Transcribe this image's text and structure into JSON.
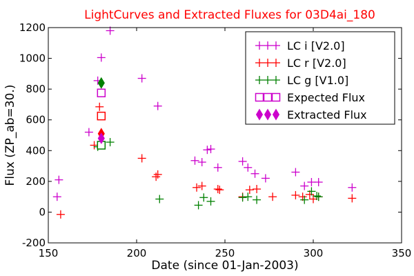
{
  "chart_data": {
    "type": "scatter",
    "title": "LightCurves and Extracted Fluxes for 03D4ai_180",
    "title_color": "#ff0000",
    "xlabel": "Date (since 01-Jan-2003)",
    "ylabel": "Flux (ZP_ab=30.)",
    "xlim": [
      150,
      350
    ],
    "ylim": [
      -200,
      1200
    ],
    "xticks": [
      150,
      200,
      250,
      300,
      350
    ],
    "yticks": [
      -200,
      0,
      200,
      400,
      600,
      800,
      1000,
      1200
    ],
    "grid": false,
    "legend_position": "top-right",
    "series": [
      {
        "name": "LC i [V2.0]",
        "marker": "plus",
        "color": "#cc00cc",
        "points": [
          [
            155,
            100
          ],
          [
            156,
            210
          ],
          [
            173,
            520
          ],
          [
            178,
            855
          ],
          [
            180,
            1005
          ],
          [
            185,
            1180
          ],
          [
            203,
            870
          ],
          [
            212,
            690
          ],
          [
            233,
            335
          ],
          [
            237,
            325
          ],
          [
            240,
            405
          ],
          [
            242,
            410
          ],
          [
            246,
            290
          ],
          [
            260,
            330
          ],
          [
            263,
            290
          ],
          [
            267,
            250
          ],
          [
            273,
            220
          ],
          [
            290,
            260
          ],
          [
            295,
            170
          ],
          [
            299,
            195
          ],
          [
            303,
            195
          ],
          [
            322,
            160
          ]
        ]
      },
      {
        "name": "LC r [V2.0]",
        "marker": "plus",
        "color": "#ff0000",
        "points": [
          [
            157,
            -15
          ],
          [
            176,
            435
          ],
          [
            179,
            685
          ],
          [
            203,
            350
          ],
          [
            211,
            230
          ],
          [
            212,
            245
          ],
          [
            234,
            160
          ],
          [
            237,
            170
          ],
          [
            246,
            150
          ],
          [
            247,
            145
          ],
          [
            260,
            100
          ],
          [
            264,
            145
          ],
          [
            268,
            150
          ],
          [
            277,
            100
          ],
          [
            290,
            110
          ],
          [
            294,
            100
          ],
          [
            298,
            115
          ],
          [
            300,
            85
          ],
          [
            303,
            100
          ],
          [
            322,
            90
          ]
        ]
      },
      {
        "name": "LC g [V1.0]",
        "marker": "plus",
        "color": "#008000",
        "points": [
          [
            178,
            425
          ],
          [
            185,
            455
          ],
          [
            213,
            85
          ],
          [
            235,
            45
          ],
          [
            238,
            95
          ],
          [
            242,
            70
          ],
          [
            260,
            95
          ],
          [
            263,
            100
          ],
          [
            268,
            80
          ],
          [
            295,
            80
          ],
          [
            299,
            135
          ],
          [
            302,
            105
          ],
          [
            303,
            100
          ]
        ]
      },
      {
        "name": "Expected Flux",
        "marker": "square",
        "color": "#cc00cc",
        "points": [
          [
            180,
            775
          ],
          [
            180,
            625
          ],
          [
            180,
            435
          ]
        ],
        "point_colors": [
          "#cc00cc",
          "#ff0000",
          "#008000"
        ]
      },
      {
        "name": "Extracted Flux",
        "marker": "diamond",
        "color": "#cc00cc",
        "points": [
          [
            180,
            840
          ],
          [
            180,
            510
          ],
          [
            180,
            480
          ]
        ],
        "point_colors": [
          "#008000",
          "#ff0000",
          "#cc00cc"
        ]
      }
    ]
  }
}
